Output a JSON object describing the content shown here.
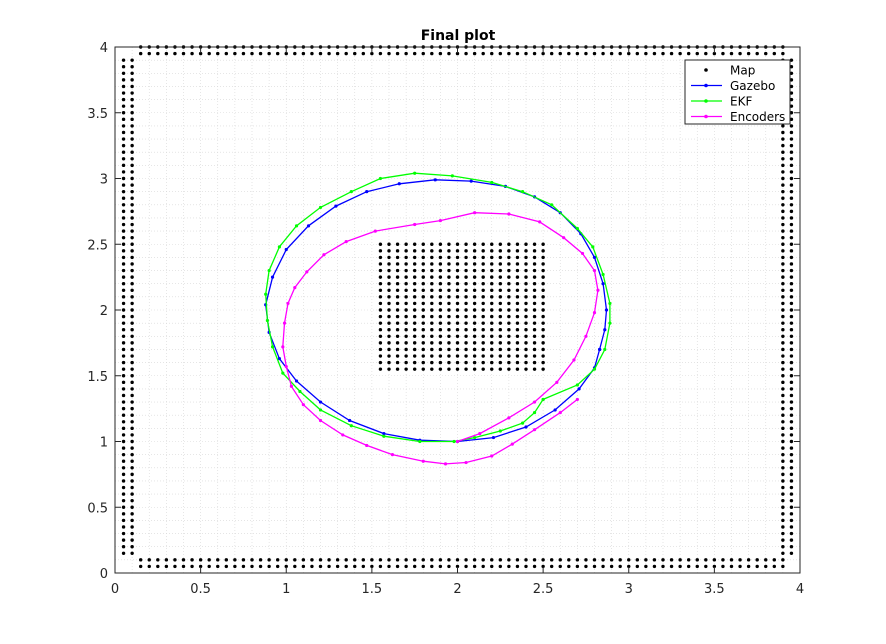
{
  "chart_data": {
    "type": "line",
    "title": "Final plot",
    "xlabel": "",
    "ylabel": "",
    "xlim": [
      0,
      4
    ],
    "ylim": [
      0,
      4
    ],
    "x_ticks": [
      "0",
      "0.5",
      "1",
      "1.5",
      "2",
      "2.5",
      "3",
      "3.5",
      "4"
    ],
    "y_ticks": [
      "0",
      "0.5",
      "1",
      "1.5",
      "2",
      "2.5",
      "3",
      "3.5",
      "4"
    ],
    "grid": "minor dotted",
    "legend_position": "top-right",
    "map": {
      "name": "Map",
      "color": "#000000",
      "border_lines": {
        "left_columns": [
          0.05,
          0.1
        ],
        "right_columns": [
          3.9,
          3.95
        ],
        "top_rows": [
          3.95,
          4.0
        ],
        "bottom_rows": [
          0.05,
          0.1
        ],
        "column_y_range": [
          0.15,
          3.9
        ],
        "row_x_range": [
          0.15,
          3.9
        ],
        "spacing": 0.05
      },
      "obstacle": {
        "x_range": [
          1.55,
          2.5
        ],
        "y_range": [
          1.55,
          2.5
        ],
        "spacing": 0.05
      }
    },
    "series": [
      {
        "name": "Gazebo",
        "color": "#0000ff",
        "points": [
          [
            2.83,
            1.7
          ],
          [
            2.86,
            1.85
          ],
          [
            2.87,
            2.0
          ],
          [
            2.85,
            2.2
          ],
          [
            2.8,
            2.4
          ],
          [
            2.72,
            2.58
          ],
          [
            2.6,
            2.74
          ],
          [
            2.45,
            2.86
          ],
          [
            2.28,
            2.94
          ],
          [
            2.08,
            2.98
          ],
          [
            1.87,
            2.99
          ],
          [
            1.66,
            2.96
          ],
          [
            1.47,
            2.9
          ],
          [
            1.29,
            2.79
          ],
          [
            1.13,
            2.64
          ],
          [
            1.0,
            2.46
          ],
          [
            0.92,
            2.25
          ],
          [
            0.88,
            2.04
          ],
          [
            0.9,
            1.83
          ],
          [
            0.96,
            1.63
          ],
          [
            1.06,
            1.46
          ],
          [
            1.2,
            1.3
          ],
          [
            1.37,
            1.16
          ],
          [
            1.57,
            1.06
          ],
          [
            1.78,
            1.01
          ],
          [
            2.0,
            1.0
          ],
          [
            2.21,
            1.03
          ],
          [
            2.4,
            1.11
          ],
          [
            2.57,
            1.24
          ],
          [
            2.71,
            1.4
          ],
          [
            2.8,
            1.56
          ],
          [
            2.83,
            1.7
          ]
        ]
      },
      {
        "name": "EKF",
        "color": "#00ff00",
        "points": [
          [
            2.5,
            1.32
          ],
          [
            2.7,
            1.43
          ],
          [
            2.8,
            1.55
          ],
          [
            2.86,
            1.7
          ],
          [
            2.89,
            1.9
          ],
          [
            2.89,
            2.05
          ],
          [
            2.85,
            2.27
          ],
          [
            2.79,
            2.48
          ],
          [
            2.7,
            2.62
          ],
          [
            2.55,
            2.8
          ],
          [
            2.38,
            2.9
          ],
          [
            2.2,
            2.97
          ],
          [
            1.97,
            3.02
          ],
          [
            1.75,
            3.04
          ],
          [
            1.55,
            3.0
          ],
          [
            1.38,
            2.9
          ],
          [
            1.2,
            2.78
          ],
          [
            1.06,
            2.64
          ],
          [
            0.96,
            2.48
          ],
          [
            0.9,
            2.3
          ],
          [
            0.88,
            2.12
          ],
          [
            0.89,
            1.92
          ],
          [
            0.92,
            1.72
          ],
          [
            0.98,
            1.52
          ],
          [
            1.08,
            1.38
          ],
          [
            1.2,
            1.24
          ],
          [
            1.38,
            1.12
          ],
          [
            1.57,
            1.04
          ],
          [
            1.78,
            1.0
          ],
          [
            1.98,
            1.0
          ],
          [
            2.1,
            1.03
          ],
          [
            2.25,
            1.08
          ],
          [
            2.38,
            1.14
          ],
          [
            2.45,
            1.22
          ],
          [
            2.5,
            1.32
          ]
        ]
      },
      {
        "name": "Encoders",
        "color": "#ff00ff",
        "points": [
          [
            2.7,
            1.32
          ],
          [
            2.6,
            1.22
          ],
          [
            2.45,
            1.09
          ],
          [
            2.32,
            0.98
          ],
          [
            2.2,
            0.89
          ],
          [
            2.05,
            0.84
          ],
          [
            1.93,
            0.83
          ],
          [
            1.8,
            0.85
          ],
          [
            1.62,
            0.9
          ],
          [
            1.47,
            0.97
          ],
          [
            1.33,
            1.05
          ],
          [
            1.2,
            1.16
          ],
          [
            1.1,
            1.28
          ],
          [
            1.03,
            1.42
          ],
          [
            1.0,
            1.57
          ],
          [
            0.98,
            1.72
          ],
          [
            0.99,
            1.9
          ],
          [
            1.01,
            2.05
          ],
          [
            1.05,
            2.17
          ],
          [
            1.12,
            2.29
          ],
          [
            1.22,
            2.42
          ],
          [
            1.35,
            2.52
          ],
          [
            1.52,
            2.6
          ],
          [
            1.75,
            2.65
          ],
          [
            1.9,
            2.68
          ],
          [
            2.1,
            2.74
          ],
          [
            2.3,
            2.73
          ],
          [
            2.48,
            2.67
          ],
          [
            2.62,
            2.55
          ],
          [
            2.73,
            2.43
          ],
          [
            2.8,
            2.3
          ],
          [
            2.82,
            2.15
          ],
          [
            2.8,
            1.98
          ],
          [
            2.75,
            1.8
          ],
          [
            2.68,
            1.62
          ],
          [
            2.58,
            1.45
          ],
          [
            2.45,
            1.3
          ],
          [
            2.3,
            1.18
          ],
          [
            2.13,
            1.06
          ],
          [
            2.0,
            1.0
          ]
        ]
      }
    ]
  }
}
